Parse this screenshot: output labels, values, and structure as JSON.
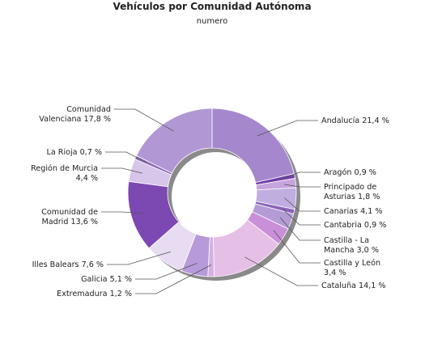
{
  "chart_data": {
    "type": "pie",
    "title": "Vehículos por Comunidad Autónoma",
    "subtitle": "numero",
    "slices": [
      {
        "name": "Andalucía",
        "value": 21.4,
        "label": [
          "Andalucía 21,4 %"
        ],
        "color": "#a487cd"
      },
      {
        "name": "Aragón",
        "value": 0.9,
        "label": [
          "Aragón 0,9 %"
        ],
        "color": "#6f3fa6"
      },
      {
        "name": "Principado de Asturias",
        "value": 1.8,
        "label": [
          "Principado de",
          "Asturias 1,8 %"
        ],
        "color": "#c6a4de"
      },
      {
        "name": "Canarias",
        "value": 4.1,
        "label": [
          "Canarias 4,1 %"
        ],
        "color": "#c0aee0"
      },
      {
        "name": "Cantabria",
        "value": 0.9,
        "label": [
          "Cantabria 0,9 %"
        ],
        "color": "#8c62b8"
      },
      {
        "name": "Castilla - La Mancha",
        "value": 3.0,
        "label": [
          "Castilla - La",
          "Mancha 3,0 %"
        ],
        "color": "#b49bd6"
      },
      {
        "name": "Castilla y León",
        "value": 3.4,
        "label": [
          "Castilla y León",
          "3,4 %"
        ],
        "color": "#c98fd8"
      },
      {
        "name": "Cataluña",
        "value": 14.1,
        "label": [
          "Cataluña 14,1 %"
        ],
        "color": "#e6bfe6"
      },
      {
        "name": "Extremadura",
        "value": 1.2,
        "label": [
          "Extremadura 1,2 %"
        ],
        "color": "#d3b0e2"
      },
      {
        "name": "Galicia",
        "value": 5.1,
        "label": [
          "Galicia 5,1 %"
        ],
        "color": "#b79ada"
      },
      {
        "name": "Illes Balears",
        "value": 7.6,
        "label": [
          "Illes Balears 7,6 %"
        ],
        "color": "#e7dcf1"
      },
      {
        "name": "Comunidad de Madrid",
        "value": 13.6,
        "label": [
          "Comunidad de",
          "Madrid 13,6 %"
        ],
        "color": "#7c48b2"
      },
      {
        "name": "Región de Murcia",
        "value": 4.4,
        "label": [
          "Región de Murcia",
          "4,4 %"
        ],
        "color": "#d7c5ea"
      },
      {
        "name": "La Rioja",
        "value": 0.7,
        "label": [
          "La Rioja 0,7 %"
        ],
        "color": "#8b6bb8"
      },
      {
        "name": "Comunidad Valenciana",
        "value": 17.8,
        "label": [
          "Comunidad",
          "Valenciana 17,8 %"
        ],
        "color": "#b198d5"
      }
    ]
  }
}
